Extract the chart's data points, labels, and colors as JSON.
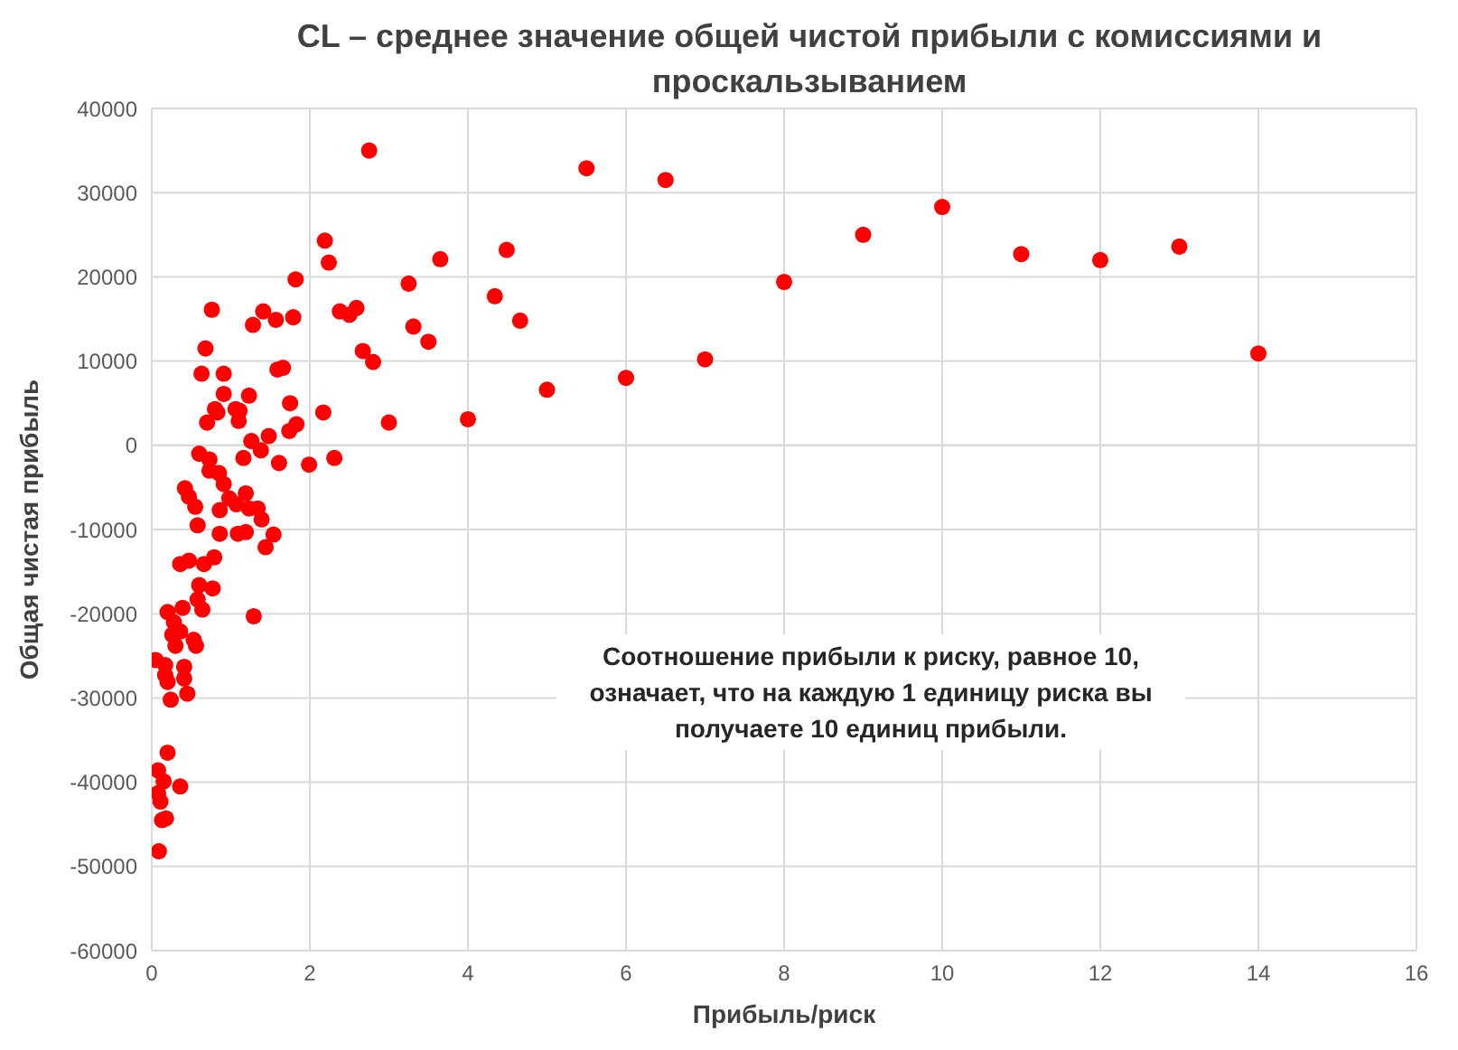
{
  "chart_data": {
    "type": "scatter",
    "title": "CL – среднее значение общей чистой прибыли с комиссиями и проскальзыванием",
    "xlabel": "Прибыль/риск",
    "ylabel": "Общая чистая прибыль",
    "annotations": [
      "Соотношение прибыли к риску, равное 10, означает, что на каждую 1 единицу риска вы получаете 10 единиц прибыли."
    ],
    "series": [
      {
        "color": "#ff0000",
        "x": [
          2.75,
          5.5,
          6.5,
          10,
          9,
          11,
          12,
          13,
          14,
          8,
          7,
          6,
          5,
          4,
          2.19,
          2.24,
          1.82,
          3.65,
          4.49,
          3.25,
          1.79,
          2.38,
          2.5,
          2.59,
          4.34,
          4.66,
          3.31,
          3.5,
          2.67,
          2.8,
          1.75,
          2.17,
          3.0,
          1.83,
          1.99,
          2.31,
          0.76,
          1.41,
          1.28,
          1.57,
          0.68,
          0.63,
          0.91,
          1.59,
          1.66,
          0.91,
          1.23,
          0.8,
          0.83,
          1.06,
          1.11,
          0.7,
          1.1,
          1.74,
          1.26,
          1.48,
          1.38,
          0.6,
          0.73,
          1.16,
          1.61,
          0.73,
          0.85,
          0.91,
          0.42,
          0.47,
          0.55,
          0.58,
          0.98,
          1.07,
          1.19,
          1.23,
          1.34,
          1.39,
          0.86,
          0.86,
          1.09,
          1.19,
          1.54,
          1.44,
          0.36,
          0.47,
          0.66,
          0.79,
          0.6,
          0.77,
          0.58,
          0.64,
          0.2,
          0.39,
          1.29,
          0.28,
          0.26,
          0.36,
          0.53,
          0.56,
          0.3,
          0.05,
          0.17,
          0.41,
          0.17,
          0.41,
          0.2,
          0.45,
          0.24,
          0.2,
          0.08,
          0.15,
          0.36,
          0.08,
          0.11,
          0.13,
          0.18,
          0.09
        ],
        "values": [
          35000,
          32900,
          31500,
          28300,
          25000,
          22700,
          22000,
          23600,
          10900,
          19400,
          10200,
          8000,
          6600,
          3100,
          24300,
          21700,
          19700,
          22100,
          23200,
          19200,
          15200,
          15900,
          15500,
          16300,
          17700,
          14800,
          14100,
          12300,
          11200,
          9900,
          5000,
          3900,
          2700,
          2500,
          -2300,
          -1500,
          16100,
          15900,
          14300,
          14900,
          11500,
          8500,
          8500,
          9000,
          9200,
          6100,
          5900,
          4300,
          3900,
          4300,
          4100,
          2700,
          2900,
          1700,
          500,
          1100,
          -600,
          -1000,
          -1700,
          -1500,
          -2100,
          -3000,
          -3300,
          -4600,
          -5100,
          -6100,
          -7300,
          -9500,
          -6300,
          -7000,
          -5700,
          -7500,
          -7500,
          -8800,
          -7700,
          -10500,
          -10500,
          -10300,
          -10600,
          -12100,
          -14100,
          -13700,
          -14100,
          -13300,
          -16600,
          -17000,
          -18300,
          -19500,
          -19800,
          -19300,
          -20300,
          -21000,
          -22500,
          -22100,
          -23100,
          -23800,
          -23800,
          -25500,
          -26100,
          -26300,
          -27300,
          -27700,
          -28100,
          -29500,
          -30200,
          -36500,
          -38600,
          -39900,
          -40500,
          -41300,
          -42300,
          -44500,
          -44300,
          -48200
        ]
      }
    ],
    "xlim": [
      0,
      16
    ],
    "xticks": [
      0,
      2,
      4,
      6,
      8,
      10,
      12,
      14,
      16
    ],
    "ylim": [
      -60000,
      40000
    ],
    "yticks": [
      -60000,
      -50000,
      -40000,
      -30000,
      -20000,
      -10000,
      0,
      10000,
      20000,
      30000,
      40000
    ],
    "grid": true,
    "marker": "circle",
    "legend": false
  }
}
